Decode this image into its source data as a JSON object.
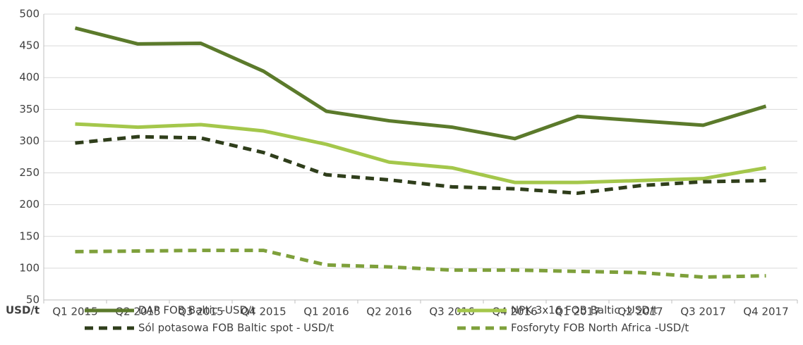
{
  "chart_data": {
    "type": "line",
    "y_unit_label": "USD/t",
    "categories": [
      "Q1 2015",
      "Q2 2015",
      "Q3 2015",
      "Q4 2015",
      "Q1 2016",
      "Q2 2016",
      "Q3 2016",
      "Q4 2016",
      "Q1 2017",
      "Q2 2017",
      "Q3 2017",
      "Q4 2017"
    ],
    "series": [
      {
        "name": "DAP FOB Baltic -USD/t",
        "color": "#5b7a2b",
        "dash": false,
        "values": [
          478,
          453,
          454,
          410,
          347,
          332,
          322,
          304,
          339,
          332,
          325,
          355
        ]
      },
      {
        "name": "NPK 3x16 FOB Baltic -USD/t",
        "color": "#a4c74b",
        "dash": false,
        "values": [
          327,
          322,
          326,
          316,
          295,
          267,
          258,
          235,
          235,
          238,
          241,
          258
        ]
      },
      {
        "name": "Sól potasowa FOB Baltic spot - USD/t",
        "color": "#2f3e1b",
        "dash": true,
        "values": [
          297,
          307,
          305,
          282,
          247,
          239,
          228,
          225,
          218,
          230,
          236,
          238
        ]
      },
      {
        "name": "Fosforyty FOB North Africa -USD/t",
        "color": "#7ea03b",
        "dash": true,
        "values": [
          126,
          127,
          128,
          128,
          105,
          102,
          97,
          97,
          95,
          93,
          86,
          88
        ]
      }
    ],
    "ylim": [
      50,
      500
    ],
    "yticks": [
      50,
      100,
      150,
      200,
      250,
      300,
      350,
      400,
      450,
      500
    ],
    "grid": true
  }
}
